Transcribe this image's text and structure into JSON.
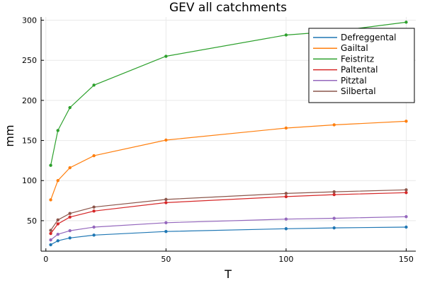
{
  "chart_data": {
    "type": "line",
    "title": "GEV all catchments",
    "xlabel": "T",
    "ylabel": "mm",
    "x": [
      2,
      5,
      10,
      20,
      50,
      100,
      120,
      150
    ],
    "xlim": [
      -2,
      154
    ],
    "ylim": [
      12,
      304
    ],
    "xticks": [
      0,
      50,
      100,
      150
    ],
    "yticks": [
      50,
      100,
      150,
      200,
      250,
      300
    ],
    "grid": true,
    "legend_position": "top-right",
    "series": [
      {
        "name": "Defreggental",
        "color": "#1f77b4",
        "values": [
          20,
          25,
          28.5,
          32,
          36.5,
          40,
          41,
          42
        ]
      },
      {
        "name": "Gailtal",
        "color": "#ff7f0e",
        "values": [
          76,
          100,
          116,
          131,
          150.5,
          165.5,
          169.5,
          174
        ]
      },
      {
        "name": "Feistritz",
        "color": "#2ca02c",
        "values": [
          119,
          162.5,
          191,
          219,
          255,
          281.5,
          286,
          297.5
        ]
      },
      {
        "name": "Paltental",
        "color": "#d62728",
        "values": [
          34,
          46,
          54.5,
          62,
          72.5,
          80,
          82.5,
          85
        ]
      },
      {
        "name": "Pitztal",
        "color": "#9467bd",
        "values": [
          26,
          33,
          37.5,
          42,
          47.5,
          52,
          53,
          55
        ]
      },
      {
        "name": "Silbertal",
        "color": "#8c564b",
        "values": [
          38,
          51,
          59,
          67,
          76.5,
          84,
          86,
          88.5
        ]
      }
    ]
  }
}
